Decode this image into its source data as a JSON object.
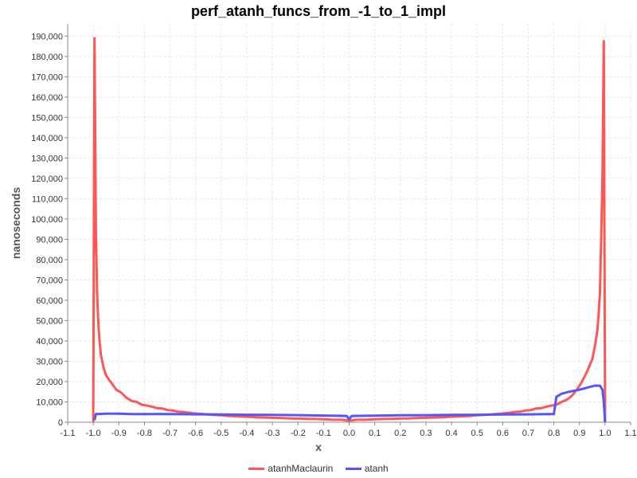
{
  "chart_data": {
    "type": "line",
    "title": "perf_atanh_funcs_from_-1_to_1_impl",
    "xlabel": "x",
    "ylabel": "nanoseconds",
    "xlim": [
      -1.1,
      1.1
    ],
    "ylim": [
      0,
      196000
    ],
    "grid": true,
    "legend_position": "bottom-center",
    "x_ticks": [
      "-1.1",
      "-1.0",
      "-0.9",
      "-0.8",
      "-0.7",
      "-0.6",
      "-0.5",
      "-0.4",
      "-0.3",
      "-0.2",
      "-0.1",
      "0.0",
      "0.1",
      "0.2",
      "0.3",
      "0.4",
      "0.5",
      "0.6",
      "0.7",
      "0.8",
      "0.9",
      "1.0",
      "1.1"
    ],
    "y_ticks": [
      "0",
      "10,000",
      "20,000",
      "30,000",
      "40,000",
      "50,000",
      "60,000",
      "70,000",
      "80,000",
      "90,000",
      "100,000",
      "110,000",
      "120,000",
      "130,000",
      "140,000",
      "150,000",
      "160,000",
      "170,000",
      "180,000",
      "190,000"
    ],
    "series": [
      {
        "name": "atanhMaclaurin",
        "color": "#ff5555",
        "points": [
          [
            -1.0,
            0
          ],
          [
            -0.995,
            189000
          ],
          [
            -0.99,
            95000
          ],
          [
            -0.985,
            63000
          ],
          [
            -0.98,
            48000
          ],
          [
            -0.975,
            39000
          ],
          [
            -0.97,
            33000
          ],
          [
            -0.96,
            27000
          ],
          [
            -0.95,
            23000
          ],
          [
            -0.93,
            19500
          ],
          [
            -0.91,
            16000
          ],
          [
            -0.89,
            14500
          ],
          [
            -0.87,
            12000
          ],
          [
            -0.85,
            10500
          ],
          [
            -0.83,
            10000
          ],
          [
            -0.81,
            8600
          ],
          [
            -0.79,
            8200
          ],
          [
            -0.77,
            7600
          ],
          [
            -0.75,
            6900
          ],
          [
            -0.73,
            6800
          ],
          [
            -0.71,
            6000
          ],
          [
            -0.69,
            5800
          ],
          [
            -0.67,
            5200
          ],
          [
            -0.65,
            5100
          ],
          [
            -0.63,
            4700
          ],
          [
            -0.6,
            4300
          ],
          [
            -0.57,
            4000
          ],
          [
            -0.54,
            3700
          ],
          [
            -0.5,
            3400
          ],
          [
            -0.47,
            3100
          ],
          [
            -0.44,
            2900
          ],
          [
            -0.4,
            2700
          ],
          [
            -0.37,
            2500
          ],
          [
            -0.33,
            2300
          ],
          [
            -0.3,
            2200
          ],
          [
            -0.27,
            2100
          ],
          [
            -0.23,
            1900
          ],
          [
            -0.2,
            1800
          ],
          [
            -0.17,
            1700
          ],
          [
            -0.13,
            1600
          ],
          [
            -0.1,
            1500
          ],
          [
            -0.07,
            1300
          ],
          [
            -0.03,
            1200
          ],
          [
            0.0,
            800
          ],
          [
            0.03,
            1200
          ],
          [
            0.07,
            1300
          ],
          [
            0.1,
            1500
          ],
          [
            0.13,
            1600
          ],
          [
            0.17,
            1700
          ],
          [
            0.2,
            1800
          ],
          [
            0.23,
            1900
          ],
          [
            0.27,
            2100
          ],
          [
            0.3,
            2200
          ],
          [
            0.33,
            2300
          ],
          [
            0.37,
            2500
          ],
          [
            0.4,
            2700
          ],
          [
            0.44,
            2900
          ],
          [
            0.47,
            3100
          ],
          [
            0.5,
            3400
          ],
          [
            0.54,
            3700
          ],
          [
            0.57,
            4000
          ],
          [
            0.6,
            4300
          ],
          [
            0.63,
            4700
          ],
          [
            0.65,
            5100
          ],
          [
            0.67,
            5200
          ],
          [
            0.69,
            5800
          ],
          [
            0.71,
            6000
          ],
          [
            0.73,
            6800
          ],
          [
            0.75,
            6900
          ],
          [
            0.77,
            7600
          ],
          [
            0.79,
            8200
          ],
          [
            0.81,
            8600
          ],
          [
            0.83,
            10000
          ],
          [
            0.85,
            11000
          ],
          [
            0.87,
            13000
          ],
          [
            0.89,
            16000
          ],
          [
            0.91,
            20000
          ],
          [
            0.93,
            25000
          ],
          [
            0.95,
            31000
          ],
          [
            0.96,
            37000
          ],
          [
            0.97,
            45000
          ],
          [
            0.975,
            53000
          ],
          [
            0.98,
            63000
          ],
          [
            0.985,
            90000
          ],
          [
            0.99,
            120000
          ],
          [
            0.995,
            187500
          ],
          [
            1.0,
            0
          ]
        ]
      },
      {
        "name": "atanh",
        "color": "#5555ff",
        "points": [
          [
            -0.995,
            1000
          ],
          [
            -0.99,
            4000
          ],
          [
            -0.95,
            4200
          ],
          [
            -0.9,
            4200
          ],
          [
            -0.85,
            4000
          ],
          [
            -0.8,
            4000
          ],
          [
            -0.7,
            4000
          ],
          [
            -0.6,
            3900
          ],
          [
            -0.5,
            3800
          ],
          [
            -0.4,
            3700
          ],
          [
            -0.3,
            3600
          ],
          [
            -0.2,
            3500
          ],
          [
            -0.1,
            3300
          ],
          [
            -0.01,
            3100
          ],
          [
            0.0,
            1500
          ],
          [
            0.01,
            3100
          ],
          [
            0.1,
            3200
          ],
          [
            0.2,
            3400
          ],
          [
            0.3,
            3500
          ],
          [
            0.4,
            3600
          ],
          [
            0.5,
            3700
          ],
          [
            0.6,
            3800
          ],
          [
            0.7,
            3900
          ],
          [
            0.79,
            4000
          ],
          [
            0.8,
            4000
          ],
          [
            0.81,
            12500
          ],
          [
            0.83,
            14000
          ],
          [
            0.86,
            15000
          ],
          [
            0.88,
            15500
          ],
          [
            0.9,
            16000
          ],
          [
            0.93,
            17000
          ],
          [
            0.96,
            18000
          ],
          [
            0.98,
            18000
          ],
          [
            0.99,
            16000
          ],
          [
            0.995,
            10000
          ],
          [
            1.0,
            0
          ]
        ]
      }
    ]
  }
}
